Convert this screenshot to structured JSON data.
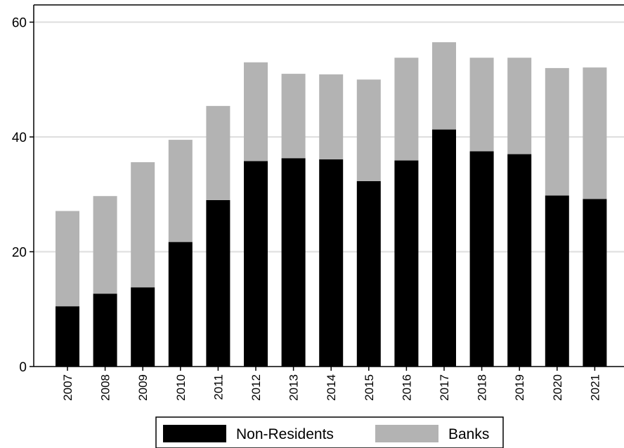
{
  "chart_data": {
    "type": "bar",
    "stacked": true,
    "categories": [
      "2007",
      "2008",
      "2009",
      "2010",
      "2011",
      "2012",
      "2013",
      "2014",
      "2015",
      "2016",
      "2017",
      "2018",
      "2019",
      "2020",
      "2021"
    ],
    "series": [
      {
        "name": "Non-Residents",
        "color": "#000000",
        "values": [
          10.5,
          12.7,
          13.8,
          21.7,
          29.0,
          35.8,
          36.3,
          36.1,
          32.3,
          35.9,
          41.3,
          37.5,
          37.0,
          29.8,
          29.2
        ]
      },
      {
        "name": "Banks",
        "color": "#b3b3b3",
        "values": [
          16.6,
          17.0,
          21.8,
          17.8,
          16.4,
          17.2,
          14.7,
          14.8,
          17.7,
          17.9,
          15.2,
          16.3,
          16.8,
          22.2,
          22.9
        ]
      }
    ],
    "ylim": [
      0,
      63
    ],
    "yticks": [
      0,
      20,
      40,
      60
    ],
    "grid": "horizontal",
    "legend": "bottom",
    "title": "",
    "xlabel": "",
    "ylabel": ""
  }
}
